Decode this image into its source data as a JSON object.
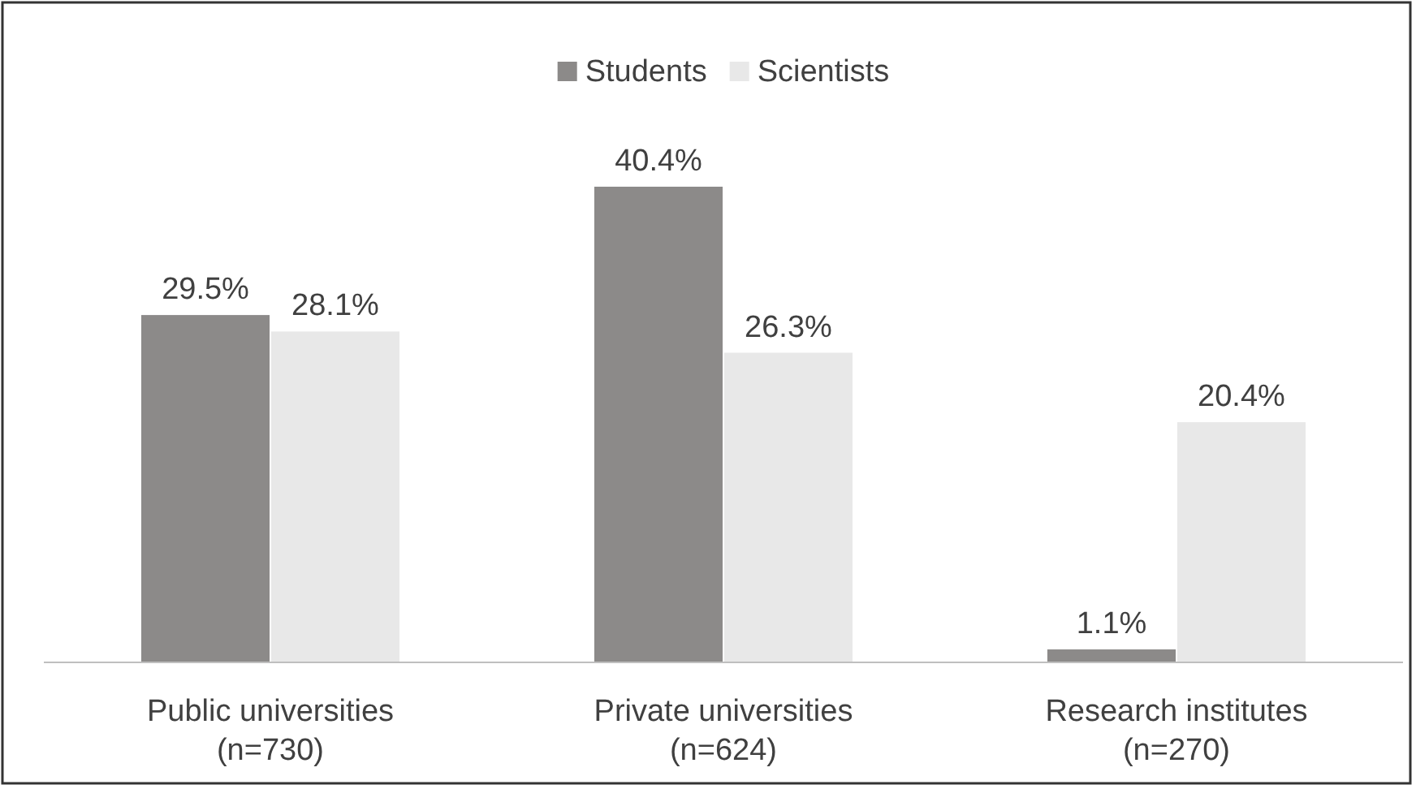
{
  "chart_data": {
    "type": "bar",
    "categories": [
      "Public universities\n(n=730)",
      "Private universities\n(n=624)",
      "Research institutes\n(n=270)"
    ],
    "series": [
      {
        "name": "Students",
        "color": "#8c8a89",
        "values": [
          29.5,
          40.4,
          1.1
        ],
        "value_labels": [
          "29.5%",
          "40.4%",
          "1.1%"
        ]
      },
      {
        "name": "Scientists",
        "color": "#e8e8e8",
        "values": [
          28.1,
          26.3,
          20.4
        ],
        "value_labels": [
          "28.1%",
          "26.3%",
          "20.4%"
        ]
      }
    ],
    "legend": "top",
    "tick_labels": "x"
  }
}
